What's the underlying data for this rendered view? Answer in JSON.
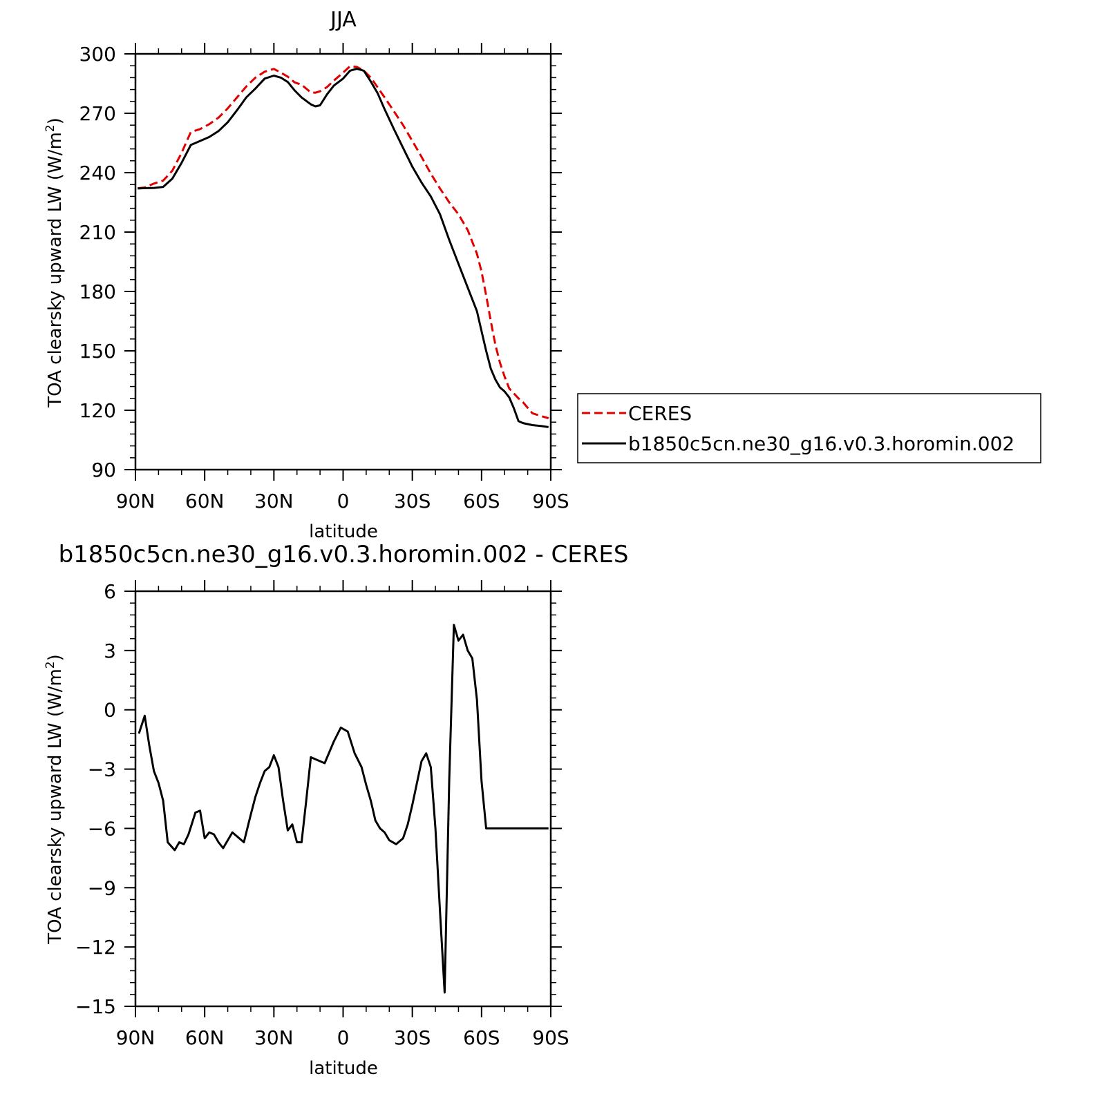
{
  "chart_data": [
    {
      "type": "line",
      "title": "JJA",
      "xlabel": "latitude",
      "ylabel": "TOA clearsky upward LW (W/m",
      "ylabel_sup": "2",
      "ylabel_close": ")",
      "xlim": [
        90,
        -90
      ],
      "ylim": [
        90,
        300
      ],
      "xticks": [
        {
          "v": 90,
          "label": "90N"
        },
        {
          "v": 60,
          "label": "60N"
        },
        {
          "v": 30,
          "label": "30N"
        },
        {
          "v": 0,
          "label": "0"
        },
        {
          "v": -30,
          "label": "30S"
        },
        {
          "v": -60,
          "label": "60S"
        },
        {
          "v": -90,
          "label": "90S"
        }
      ],
      "yticks": [
        {
          "v": 300,
          "label": "300"
        },
        {
          "v": 270,
          "label": "270"
        },
        {
          "v": 240,
          "label": "240"
        },
        {
          "v": 210,
          "label": "210"
        },
        {
          "v": 180,
          "label": "180"
        },
        {
          "v": 150,
          "label": "150"
        },
        {
          "v": 120,
          "label": "120"
        },
        {
          "v": 90,
          "label": "90"
        }
      ],
      "legend": {
        "placement": "right",
        "entries": [
          "CERES",
          "b1850c5cn.ne30_g16.v0.3.horomin.002"
        ]
      },
      "series": [
        {
          "name": "CERES",
          "color": "#e00000",
          "style": "dashed",
          "x": [
            89,
            86,
            82,
            78,
            74,
            70,
            66,
            62,
            58,
            54,
            50,
            46,
            42,
            38,
            34,
            30,
            27,
            24,
            21,
            18,
            14,
            12,
            10,
            7,
            4,
            0,
            -3,
            -6,
            -9,
            -12,
            -15,
            -18,
            -22,
            -26,
            -30,
            -34,
            -38,
            -42,
            -46,
            -50,
            -54,
            -58,
            -60,
            -62,
            -64,
            -66,
            -68,
            -70,
            -72,
            -74,
            -76,
            -78,
            -82,
            -86,
            -89
          ],
          "y": [
            232.1,
            232.5,
            234.5,
            236,
            241,
            250,
            260.5,
            262,
            264.5,
            267.8,
            272.5,
            278,
            283.5,
            288,
            291,
            292.4,
            290.5,
            288.5,
            285.6,
            284.4,
            280.5,
            280.4,
            281.1,
            283.2,
            286.5,
            290.5,
            293.8,
            293.4,
            291.5,
            288,
            283,
            278,
            271,
            264,
            256,
            248,
            239.5,
            232,
            225,
            219,
            211,
            199,
            190,
            178,
            165,
            153,
            144,
            137,
            131,
            128.5,
            126,
            124,
            118.5,
            117,
            116
          ]
        },
        {
          "name": "b1850c5cn.ne30_g16.v0.3.horomin.002",
          "color": "#000000",
          "style": "solid",
          "x": [
            89,
            86,
            82,
            78,
            74,
            70,
            66,
            62,
            58,
            54,
            50,
            46,
            42,
            38,
            34,
            30,
            27,
            24,
            21,
            18,
            14,
            12,
            10,
            7,
            4,
            0,
            -3,
            -6,
            -9,
            -12,
            -15,
            -18,
            -22,
            -26,
            -30,
            -34,
            -38,
            -42,
            -46,
            -50,
            -54,
            -58,
            -60,
            -62,
            -64,
            -66,
            -68,
            -70,
            -72,
            -74,
            -76,
            -78,
            -82,
            -86,
            -89
          ],
          "y": [
            232.0,
            232.2,
            232.3,
            232.8,
            237,
            245,
            254,
            256,
            258,
            261,
            265.5,
            271.5,
            278,
            282.5,
            287.5,
            289,
            288,
            285.8,
            281.5,
            278,
            274.5,
            273.5,
            274,
            279.5,
            284,
            287.5,
            291.5,
            292.5,
            291.5,
            286,
            280,
            272,
            262,
            252.5,
            243,
            235,
            228,
            219,
            206,
            194,
            182,
            170,
            160,
            150,
            141,
            135.5,
            131.5,
            129.5,
            126.5,
            121,
            114.5,
            113.5,
            112.5,
            112,
            111.5
          ]
        }
      ]
    },
    {
      "type": "line",
      "title": "b1850c5cn.ne30_g16.v0.3.horomin.002 - CERES",
      "xlabel": "latitude",
      "ylabel": "TOA clearsky upward LW (W/m",
      "ylabel_sup": "2",
      "ylabel_close": ")",
      "xlim": [
        90,
        -90
      ],
      "ylim": [
        -15,
        6
      ],
      "xticks": [
        {
          "v": 90,
          "label": "90N"
        },
        {
          "v": 60,
          "label": "60N"
        },
        {
          "v": 30,
          "label": "30N"
        },
        {
          "v": 0,
          "label": "0"
        },
        {
          "v": -30,
          "label": "30S"
        },
        {
          "v": -60,
          "label": "60S"
        },
        {
          "v": -90,
          "label": "90S"
        }
      ],
      "yticks": [
        {
          "v": 6,
          "label": "6"
        },
        {
          "v": 3,
          "label": "3"
        },
        {
          "v": 0,
          "label": "0"
        },
        {
          "v": -3,
          "label": "−3"
        },
        {
          "v": -6,
          "label": "−6"
        },
        {
          "v": -9,
          "label": "−9"
        },
        {
          "v": -12,
          "label": "−12"
        },
        {
          "v": -15,
          "label": "−15"
        }
      ],
      "series": [
        {
          "color": "#000000",
          "style": "solid",
          "x": [
            88.5,
            86,
            84,
            82,
            80,
            78,
            76,
            73,
            71,
            69,
            67,
            64,
            62,
            60,
            58,
            56,
            54,
            52,
            48,
            46,
            43,
            40,
            38,
            36,
            34,
            32,
            30,
            28,
            26,
            24,
            22,
            20,
            18,
            16,
            14,
            12,
            10,
            8,
            4,
            1,
            -2,
            -5,
            -8,
            -10,
            -12,
            -14,
            -16,
            -18,
            -20,
            -23,
            -26,
            -28,
            -30,
            -34,
            -36,
            -38,
            -40,
            -42,
            -44,
            -46,
            -48,
            -50,
            -52,
            -54,
            -56,
            -58,
            -60,
            -62,
            -64,
            -68,
            -70,
            -72,
            -74,
            -76,
            -78,
            -80,
            -82,
            -84,
            -86,
            -89
          ],
          "y": [
            -1.2,
            -0.3,
            -1.8,
            -3.1,
            -3.7,
            -4.6,
            -6.7,
            -7.1,
            -6.7,
            -6.8,
            -6.3,
            -5.2,
            -5.1,
            -6.5,
            -6.2,
            -6.3,
            -6.7,
            -7.0,
            -6.2,
            -6.4,
            -6.7,
            -5.3,
            -4.4,
            -3.7,
            -3.1,
            -2.9,
            -2.3,
            -2.9,
            -4.6,
            -6.1,
            -5.8,
            -6.7,
            -6.7,
            -4.6,
            -2.4,
            -2.5,
            -2.6,
            -2.7,
            -1.6,
            -0.9,
            -1.1,
            -2.2,
            -2.9,
            -3.8,
            -4.6,
            -5.6,
            -6.0,
            -6.2,
            -6.6,
            -6.8,
            -6.5,
            -5.8,
            -4.8,
            -2.6,
            -2.2,
            -2.9,
            -6.0,
            -10.2,
            -14.3,
            -3.5,
            4.3,
            3.5,
            3.8,
            3.0,
            2.6,
            0.5,
            -3.6,
            -6.0,
            -6.0,
            -6.0,
            -6.0,
            -6.0,
            -6.0,
            -6.0,
            -6.0,
            -6.0,
            -6.0,
            -6.0,
            -6.0,
            -6.0
          ]
        }
      ]
    }
  ]
}
